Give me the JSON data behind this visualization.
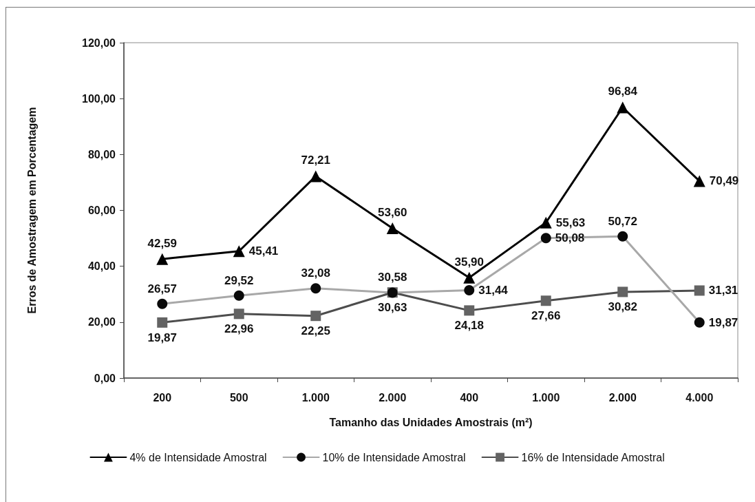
{
  "chart_data": {
    "type": "line",
    "xlabel": "Tamanho das Unidades Amostrais (m²)",
    "ylabel": "Erros de Amostragem em Porcentagem",
    "categories": [
      "200",
      "500",
      "1.000",
      "2.000",
      "400",
      "1.000",
      "2.000",
      "4.000"
    ],
    "series": [
      {
        "name": "4% de Intensidade Amostral",
        "color": "#000000",
        "marker": "triangle",
        "values": [
          42.59,
          45.41,
          72.21,
          53.6,
          35.9,
          55.63,
          96.84,
          70.49
        ],
        "value_labels": [
          "42,59",
          "45,41",
          "72,21",
          "53,60",
          "35,90",
          "55,63",
          "96,84",
          "70,49"
        ]
      },
      {
        "name": "10% de Intensidade Amostral",
        "color": "#a8a8a8",
        "colors": [
          "#0a0a0a",
          "#0a0a0a",
          "#0a0a0a",
          "#0a0a0a",
          "#0a0a0a",
          "#0a0a0a",
          "#0a0a0a",
          "#0a0a0a"
        ],
        "marker": "circle",
        "values": [
          26.57,
          29.52,
          32.08,
          30.58,
          31.44,
          50.08,
          50.72,
          19.87
        ],
        "value_labels": [
          "26,57",
          "29,52",
          "32,08",
          "30,58",
          "31,44",
          "50,08",
          "50,72",
          "19,87"
        ]
      },
      {
        "name": "16% de Intensidade Amostral",
        "color": "#4d4d4d",
        "colors": [
          "#636363",
          "#636363",
          "#636363",
          "#636363",
          "#636363",
          "#636363",
          "#636363",
          "#636363"
        ],
        "marker": "square",
        "values": [
          19.87,
          22.96,
          22.25,
          30.63,
          24.18,
          27.66,
          30.82,
          31.31
        ],
        "value_labels": [
          "19,87",
          "22,96",
          "22,25",
          "30,63",
          "24,18",
          "27,66",
          "30,82",
          "31,31"
        ]
      }
    ],
    "ylim": [
      0,
      120
    ],
    "yticks": [
      {
        "value": 0,
        "label": "0,00"
      },
      {
        "value": 20,
        "label": "20,00"
      },
      {
        "value": 40,
        "label": "40,00"
      },
      {
        "value": 60,
        "label": "60,00"
      },
      {
        "value": 80,
        "label": "80,00"
      },
      {
        "value": 100,
        "label": "100,00"
      },
      {
        "value": 120,
        "label": "120,00"
      }
    ],
    "grid": false,
    "legend": "bottom",
    "line_style": "solid"
  }
}
